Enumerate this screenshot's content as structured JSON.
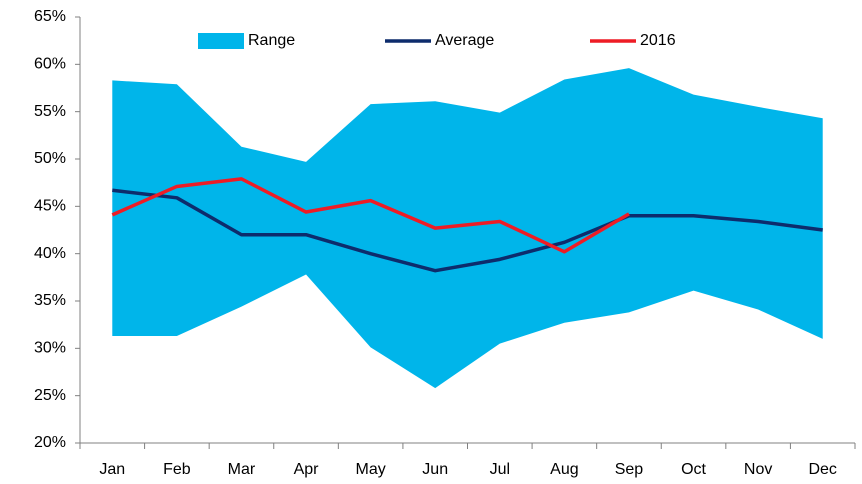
{
  "chart_data": {
    "type": "range-line",
    "categories": [
      "Jan",
      "Feb",
      "Mar",
      "Apr",
      "May",
      "Jun",
      "Jul",
      "Aug",
      "Sep",
      "Oct",
      "Nov",
      "Dec"
    ],
    "series": [
      {
        "name": "Range",
        "color": "#00b5ea",
        "low": [
          31.3,
          31.3,
          34.4,
          37.8,
          30.1,
          25.8,
          30.5,
          32.7,
          33.8,
          36.1,
          34.1,
          31.0
        ],
        "high": [
          58.3,
          57.9,
          51.3,
          49.7,
          55.8,
          56.1,
          54.9,
          58.4,
          59.6,
          56.8,
          55.5,
          54.3
        ]
      },
      {
        "name": "Average",
        "color": "#0d2c6c",
        "values": [
          46.7,
          45.9,
          42.0,
          42.0,
          40.0,
          38.2,
          39.4,
          41.2,
          44.0,
          44.0,
          43.4,
          42.5
        ]
      },
      {
        "name": "2016",
        "color": "#ee1c25",
        "values": [
          44.1,
          47.1,
          47.9,
          44.4,
          45.6,
          42.7,
          43.4,
          40.2,
          44.2,
          null,
          null,
          null
        ]
      }
    ],
    "ylim": [
      20,
      65
    ],
    "yticks": [
      {
        "value": 20,
        "label": "20%"
      },
      {
        "value": 25,
        "label": "25%"
      },
      {
        "value": 30,
        "label": "30%"
      },
      {
        "value": 35,
        "label": "35%"
      },
      {
        "value": 40,
        "label": "40%"
      },
      {
        "value": 45,
        "label": "45%"
      },
      {
        "value": 50,
        "label": "50%"
      },
      {
        "value": 55,
        "label": "55%"
      },
      {
        "value": 60,
        "label": "60%"
      },
      {
        "value": 65,
        "label": "65%"
      }
    ],
    "grid": false,
    "legend": "top"
  }
}
